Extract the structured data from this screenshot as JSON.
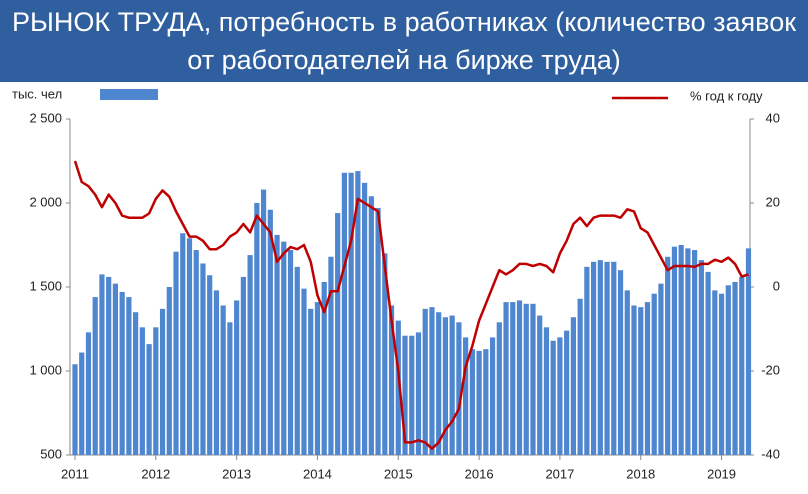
{
  "chart_data": {
    "type": "bar-line",
    "title": "РЫНОК ТРУДА, потребность в работниках (количество заявок от работодателей на бирже труда)",
    "y_label": "тыс. чел",
    "categories": [
      "2011",
      null,
      null,
      null,
      null,
      null,
      null,
      null,
      null,
      null,
      null,
      null,
      "2012",
      null,
      null,
      null,
      null,
      null,
      null,
      null,
      null,
      null,
      null,
      null,
      "2013",
      null,
      null,
      null,
      null,
      null,
      null,
      null,
      null,
      null,
      null,
      null,
      "2014",
      null,
      null,
      null,
      null,
      null,
      null,
      null,
      null,
      null,
      null,
      null,
      "2015",
      null,
      null,
      null,
      null,
      null,
      null,
      null,
      null,
      null,
      null,
      null,
      "2016",
      null,
      null,
      null,
      null,
      null,
      null,
      null,
      null,
      null,
      null,
      null,
      "2017",
      null,
      null,
      null,
      null,
      null,
      null,
      null,
      null,
      null,
      null,
      null,
      "2018",
      null,
      null,
      null,
      null,
      null,
      null,
      null,
      null,
      null,
      null,
      null,
      "2019",
      null,
      null,
      null,
      null
    ],
    "series": [
      {
        "type": "bar",
        "color": "#4f86d0",
        "values": [
          1040,
          1110,
          1230,
          1440,
          1575,
          1560,
          1520,
          1470,
          1440,
          1350,
          1260,
          1160,
          1260,
          1370,
          1500,
          1710,
          1820,
          1790,
          1720,
          1640,
          1570,
          1480,
          1390,
          1290,
          1420,
          1560,
          1690,
          2000,
          2080,
          1960,
          1810,
          1770,
          1720,
          1620,
          1490,
          1370,
          1410,
          1530,
          1680,
          1940,
          2180,
          2180,
          2190,
          2120,
          2040,
          1970,
          1700,
          1390,
          1300,
          1210,
          1210,
          1230,
          1370,
          1380,
          1350,
          1320,
          1330,
          1290,
          1200,
          1130,
          1120,
          1130,
          1200,
          1290,
          1410,
          1410,
          1420,
          1400,
          1400,
          1330,
          1260,
          1180,
          1200,
          1240,
          1320,
          1430,
          1620,
          1650,
          1660,
          1650,
          1650,
          1600,
          1480,
          1390,
          1380,
          1410,
          1460,
          1520,
          1680,
          1740,
          1750,
          1730,
          1720,
          1660,
          1590,
          1480,
          1460,
          1510,
          1530,
          1560,
          1730
        ]
      },
      {
        "type": "line",
        "name": "% год к году",
        "color": "#c00000",
        "axis": "y2",
        "values": [
          30,
          25,
          24,
          22,
          19,
          22,
          20,
          17,
          16.5,
          16.5,
          16.5,
          17.5,
          21,
          23,
          21.5,
          18,
          15,
          12,
          12,
          11,
          9,
          9,
          10,
          12,
          13,
          15,
          13,
          17,
          15,
          13,
          6,
          8,
          9.5,
          9,
          10,
          6,
          -2,
          -6,
          -1,
          -1,
          5,
          11,
          21,
          20,
          19,
          18,
          5,
          -8,
          -20,
          -37,
          -37,
          -36.5,
          -37,
          -38.5,
          -37,
          -34,
          -32,
          -29,
          -19,
          -14,
          -8,
          -4,
          0,
          4,
          3,
          4,
          5.5,
          5.5,
          5,
          5.5,
          5,
          3.5,
          8,
          11,
          15,
          16.5,
          14.5,
          16.5,
          17,
          17,
          17,
          16.5,
          18.5,
          18,
          14,
          13,
          10,
          7,
          4,
          5,
          5,
          5,
          4.8,
          5.5,
          5.5,
          6.5,
          6,
          7,
          5.5,
          2.5,
          3
        ]
      }
    ],
    "ylim": [
      500,
      2500
    ],
    "yticks": [
      500,
      {
        "value": 1000,
        "label": "1 000"
      },
      {
        "value": 1500,
        "label": "1 500"
      },
      {
        "value": 2000,
        "label": "2 000"
      },
      {
        "value": 2500,
        "label": "2 500"
      }
    ],
    "y2lim": [
      -40,
      40
    ],
    "y2ticks": [
      -40,
      -20,
      0,
      20,
      40
    ]
  }
}
